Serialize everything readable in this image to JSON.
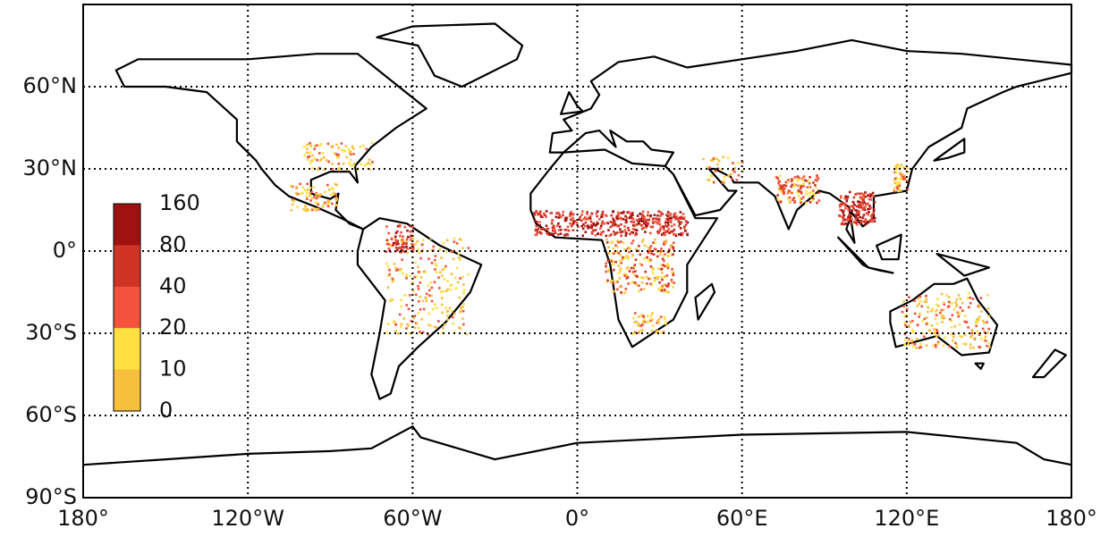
{
  "map": {
    "lon_labels": [
      "180°",
      "120°W",
      "60°W",
      "0°",
      "60°E",
      "120°E",
      "180°"
    ],
    "lat_labels": [
      "60°N",
      "30°N",
      "0°",
      "30°S",
      "60°S",
      "90°S"
    ],
    "colorbar": {
      "labels": [
        "160",
        "80",
        "40",
        "20",
        "10",
        "0"
      ],
      "colors": [
        "#9e1212",
        "#cf3424",
        "#f5523e",
        "#ffe040",
        "#f6c03c"
      ]
    }
  }
}
